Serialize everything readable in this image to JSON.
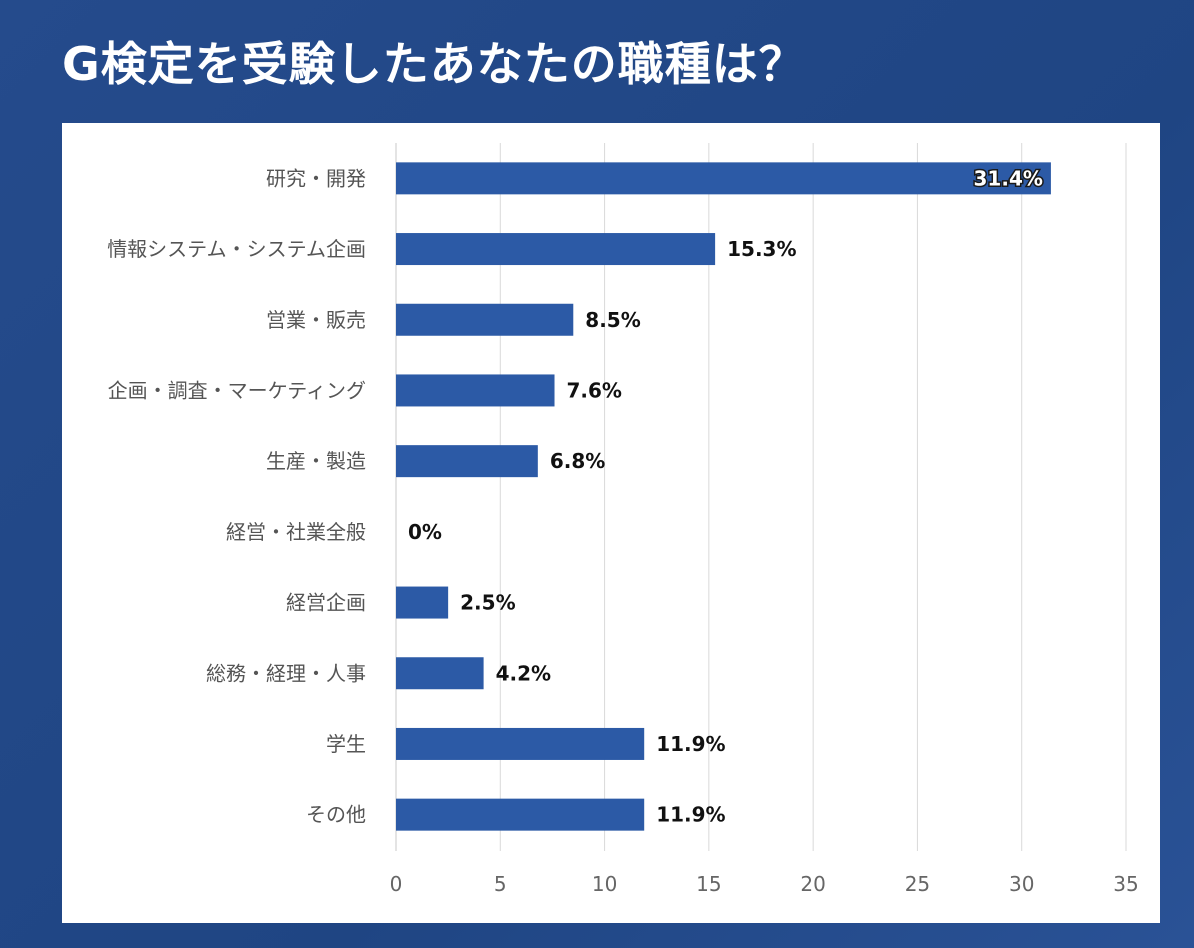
{
  "title": "G検定を受験したあなたの職種は？",
  "colors": {
    "background": "#234a8a",
    "bar": "#2c5aa6",
    "grid": "#d9d9d9",
    "axis_text": "#666666",
    "category_text": "#555555",
    "label_text": "#111111"
  },
  "chart_data": {
    "type": "bar",
    "orientation": "horizontal",
    "title": "G検定を受験したあなたの職種は？",
    "categories": [
      "研究・開発",
      "情報システム・システム企画",
      "営業・販売",
      "企画・調査・マーケティング",
      "生産・製造",
      "経営・社業全般",
      "経営企画",
      "総務・経理・人事",
      "学生",
      "その他"
    ],
    "values": [
      31.4,
      15.3,
      8.5,
      7.6,
      6.8,
      0,
      2.5,
      4.2,
      11.9,
      11.9
    ],
    "value_labels": [
      "31.4%",
      "15.3%",
      "8.5%",
      "7.6%",
      "6.8%",
      "0%",
      "2.5%",
      "4.2%",
      "11.9%",
      "11.9%"
    ],
    "xlim": [
      0,
      35
    ],
    "xticks": [
      0,
      5,
      10,
      15,
      20,
      25,
      30,
      35
    ],
    "grid": true,
    "legend": "none"
  }
}
